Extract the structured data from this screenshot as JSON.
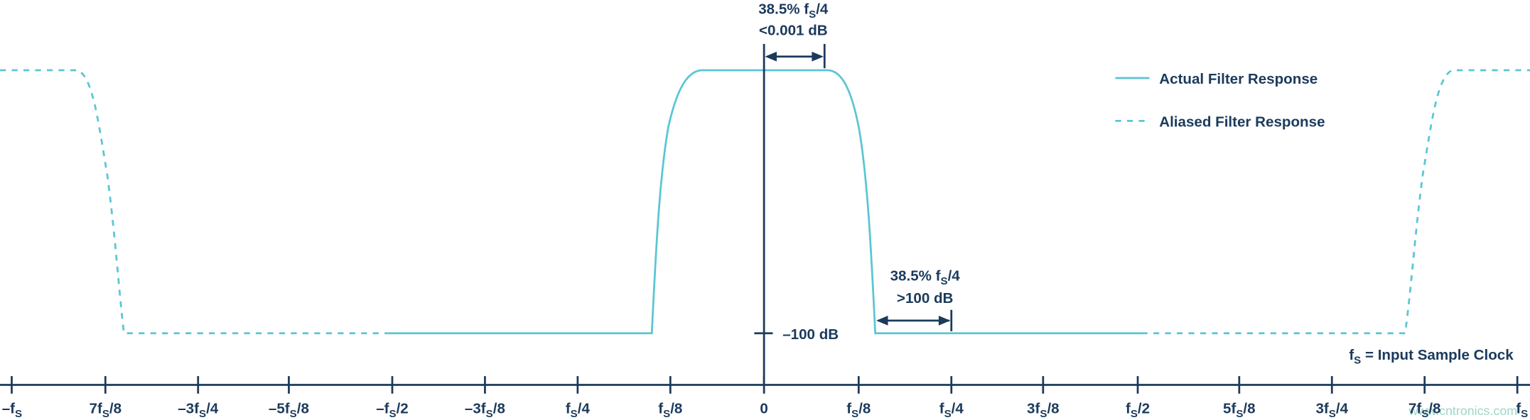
{
  "annotations": {
    "passband_width": [
      "38.5% f",
      "S",
      "/4"
    ],
    "passband_ripple": [
      "<0.001 dB"
    ],
    "transition_width": [
      "38.5% f",
      "S",
      "/4"
    ],
    "stopband_atten": [
      ">100 dB"
    ],
    "level": [
      "–100 dB"
    ],
    "clock_note": [
      "f",
      "S",
      " = Input Sample Clock"
    ]
  },
  "legend": {
    "actual": "Actual Filter Response",
    "aliased": "Aliased Filter Response"
  },
  "x_axis": {
    "ticks": [
      [
        "–f",
        "S"
      ],
      [
        "7f",
        "S",
        "/8"
      ],
      [
        "–3f",
        "S",
        "/4"
      ],
      [
        "–5f",
        "S",
        "/8"
      ],
      [
        "–f",
        "S",
        "/2"
      ],
      [
        "–3f",
        "S",
        "/8"
      ],
      [
        "f",
        "S",
        "/4"
      ],
      [
        "f",
        "S",
        "/8"
      ],
      [
        "0"
      ],
      [
        "f",
        "S",
        "/8"
      ],
      [
        "f",
        "S",
        "/4"
      ],
      [
        "3f",
        "S",
        "/8"
      ],
      [
        "f",
        "S",
        "/2"
      ],
      [
        "5f",
        "S",
        "/8"
      ],
      [
        "3f",
        "S",
        "/4"
      ],
      [
        "7f",
        "S",
        "/8"
      ],
      [
        "f",
        "S"
      ]
    ]
  },
  "watermark": "www.cntronics.com"
}
